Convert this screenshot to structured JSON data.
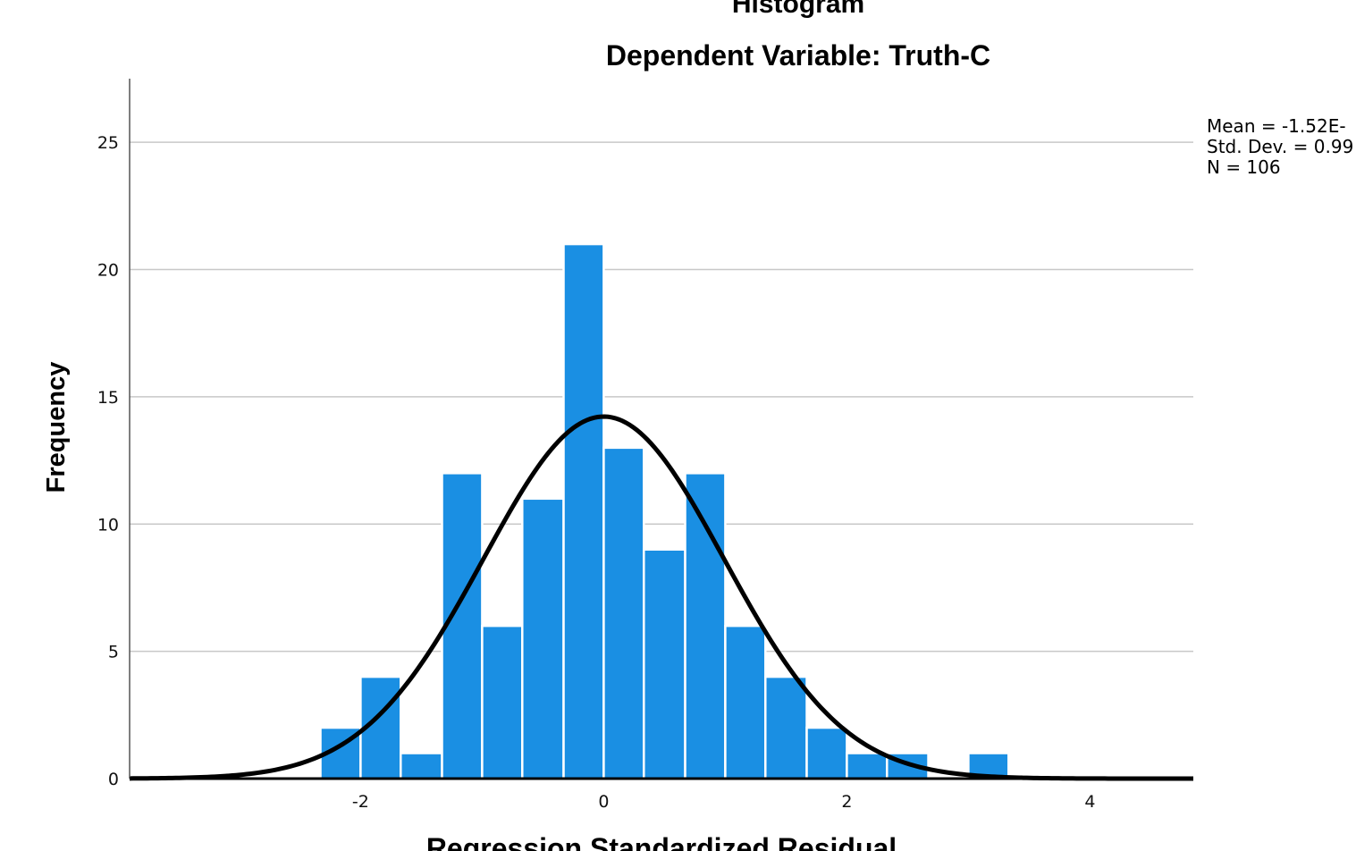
{
  "chart_data": {
    "type": "bar",
    "title": "Histogram",
    "subtitle": "Dependent Variable: Truth-C",
    "xlabel": "Regression Standardized Residual",
    "ylabel": "Frequency",
    "xlim": [
      -3.9,
      4.85
    ],
    "ylim": [
      0,
      27.5
    ],
    "x_ticks": [
      "-2",
      "0",
      "2",
      "4"
    ],
    "x_tick_values": [
      -2,
      0,
      2,
      4
    ],
    "y_ticks": [
      "0",
      "5",
      "10",
      "15",
      "20",
      "25"
    ],
    "y_tick_values": [
      0,
      5,
      10,
      15,
      20,
      25
    ],
    "grid": true,
    "bins": [
      {
        "x0": -2.33,
        "x1": -2.0,
        "count": 2
      },
      {
        "x0": -2.0,
        "x1": -1.67,
        "count": 4
      },
      {
        "x0": -1.67,
        "x1": -1.33,
        "count": 1
      },
      {
        "x0": -1.33,
        "x1": -1.0,
        "count": 12
      },
      {
        "x0": -1.0,
        "x1": -0.67,
        "count": 6
      },
      {
        "x0": -0.67,
        "x1": -0.33,
        "count": 11
      },
      {
        "x0": -0.33,
        "x1": 0.0,
        "count": 21
      },
      {
        "x0": 0.0,
        "x1": 0.33,
        "count": 13
      },
      {
        "x0": 0.33,
        "x1": 0.67,
        "count": 9
      },
      {
        "x0": 0.67,
        "x1": 1.0,
        "count": 12
      },
      {
        "x0": 1.0,
        "x1": 1.33,
        "count": 6
      },
      {
        "x0": 1.33,
        "x1": 1.67,
        "count": 4
      },
      {
        "x0": 1.67,
        "x1": 2.0,
        "count": 2
      },
      {
        "x0": 2.0,
        "x1": 2.33,
        "count": 1
      },
      {
        "x0": 2.33,
        "x1": 2.67,
        "count": 1
      },
      {
        "x0": 2.67,
        "x1": 3.0,
        "count": 0
      },
      {
        "x0": 3.0,
        "x1": 3.33,
        "count": 1
      }
    ],
    "normal_curve": {
      "mean": 0,
      "std": 0.99,
      "n": 106,
      "bin_width": 0.333
    },
    "bar_color": "#1a8fe3",
    "curve_color": "#000000",
    "stats": {
      "mean": "Mean = -1.52E-",
      "std_dev": "Std. Dev. = 0.99",
      "n": "N = 106"
    }
  }
}
